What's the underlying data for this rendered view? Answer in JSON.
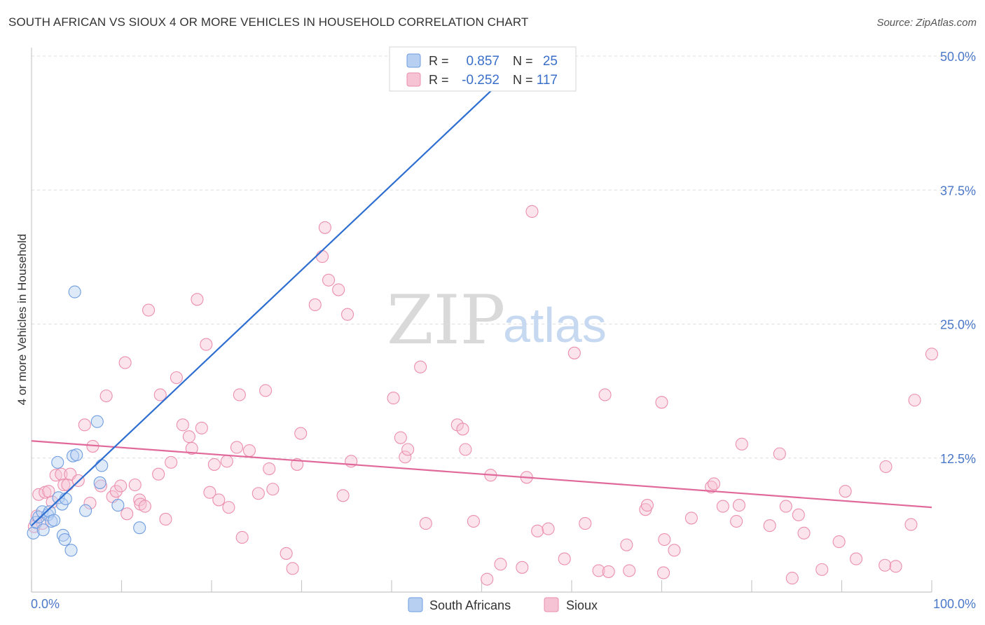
{
  "title": "SOUTH AFRICAN VS SIOUX 4 OR MORE VEHICLES IN HOUSEHOLD CORRELATION CHART",
  "source": "Source: ZipAtlas.com",
  "watermark": {
    "zip": "ZIP",
    "atlas": "atlas"
  },
  "legend_top": {
    "rows": [
      {
        "r_label": "R =",
        "r_value": "0.857",
        "n_label": "N =",
        "n_value": "25"
      },
      {
        "r_label": "R =",
        "r_value": "-0.252",
        "n_label": "N =",
        "n_value": "117"
      }
    ]
  },
  "chart_data": {
    "type": "scatter",
    "title": "SOUTH AFRICAN VS SIOUX 4 OR MORE VEHICLES IN HOUSEHOLD CORRELATION CHART",
    "xlabel": "",
    "ylabel": "4 or more Vehicles in Household",
    "xlim": [
      0,
      100
    ],
    "ylim": [
      0,
      50
    ],
    "x_tick_labels": [
      "0.0%",
      "100.0%"
    ],
    "y_ticks": [
      12.5,
      25.0,
      37.5,
      50.0
    ],
    "y_tick_labels": [
      "12.5%",
      "25.0%",
      "37.5%",
      "50.0%"
    ],
    "grid": true,
    "colors": {
      "south_africans": "#6f9de0",
      "sioux": "#eb8fae",
      "south_africans_line": "#2e6ed0",
      "sioux_line": "#e0699a"
    },
    "series": [
      {
        "name": "South Africans",
        "r": 0.857,
        "n": 25,
        "trend": {
          "x": [
            0,
            55.5
          ],
          "y": [
            6.2,
            50.3
          ]
        },
        "points": [
          {
            "x": 0.2,
            "y": 5.5
          },
          {
            "x": 0.5,
            "y": 6.5
          },
          {
            "x": 0.8,
            "y": 7.0
          },
          {
            "x": 1.2,
            "y": 7.5
          },
          {
            "x": 1.3,
            "y": 5.8
          },
          {
            "x": 1.8,
            "y": 7.2
          },
          {
            "x": 2.0,
            "y": 7.5
          },
          {
            "x": 2.2,
            "y": 6.6
          },
          {
            "x": 2.5,
            "y": 6.7
          },
          {
            "x": 3.0,
            "y": 8.8
          },
          {
            "x": 2.9,
            "y": 12.1
          },
          {
            "x": 3.4,
            "y": 8.2
          },
          {
            "x": 3.5,
            "y": 5.3
          },
          {
            "x": 3.7,
            "y": 4.9
          },
          {
            "x": 3.8,
            "y": 8.7
          },
          {
            "x": 4.4,
            "y": 3.9
          },
          {
            "x": 4.6,
            "y": 12.7
          },
          {
            "x": 4.8,
            "y": 28.0
          },
          {
            "x": 5.0,
            "y": 12.8
          },
          {
            "x": 6.0,
            "y": 7.6
          },
          {
            "x": 7.3,
            "y": 15.9
          },
          {
            "x": 7.6,
            "y": 10.2
          },
          {
            "x": 7.8,
            "y": 11.8
          },
          {
            "x": 9.6,
            "y": 8.1
          },
          {
            "x": 12.0,
            "y": 6.0
          }
        ]
      },
      {
        "name": "Sioux",
        "r": -0.252,
        "n": 117,
        "trend": {
          "x": [
            0,
            100
          ],
          "y": [
            14.1,
            7.9
          ]
        },
        "points": [
          {
            "x": 0.3,
            "y": 6.1
          },
          {
            "x": 0.6,
            "y": 7.1
          },
          {
            "x": 0.8,
            "y": 9.1
          },
          {
            "x": 1.2,
            "y": 6.4
          },
          {
            "x": 1.5,
            "y": 9.3
          },
          {
            "x": 1.9,
            "y": 9.4
          },
          {
            "x": 2.3,
            "y": 8.4
          },
          {
            "x": 2.7,
            "y": 10.9
          },
          {
            "x": 3.3,
            "y": 11.0
          },
          {
            "x": 3.6,
            "y": 10.0
          },
          {
            "x": 4.0,
            "y": 10.0
          },
          {
            "x": 4.3,
            "y": 11.0
          },
          {
            "x": 5.2,
            "y": 10.4
          },
          {
            "x": 5.9,
            "y": 15.6
          },
          {
            "x": 6.5,
            "y": 8.3
          },
          {
            "x": 6.8,
            "y": 13.6
          },
          {
            "x": 7.7,
            "y": 9.9
          },
          {
            "x": 8.3,
            "y": 18.3
          },
          {
            "x": 9.0,
            "y": 8.9
          },
          {
            "x": 9.4,
            "y": 9.4
          },
          {
            "x": 9.9,
            "y": 9.9
          },
          {
            "x": 10.6,
            "y": 7.3
          },
          {
            "x": 10.4,
            "y": 21.4
          },
          {
            "x": 11.5,
            "y": 10.0
          },
          {
            "x": 12.0,
            "y": 8.6
          },
          {
            "x": 12.1,
            "y": 8.2
          },
          {
            "x": 12.6,
            "y": 8.0
          },
          {
            "x": 13.0,
            "y": 26.3
          },
          {
            "x": 14.1,
            "y": 11.0
          },
          {
            "x": 14.3,
            "y": 18.4
          },
          {
            "x": 14.9,
            "y": 6.8
          },
          {
            "x": 15.5,
            "y": 12.1
          },
          {
            "x": 16.1,
            "y": 20.0
          },
          {
            "x": 16.8,
            "y": 15.6
          },
          {
            "x": 17.5,
            "y": 14.5
          },
          {
            "x": 17.8,
            "y": 13.4
          },
          {
            "x": 18.4,
            "y": 27.3
          },
          {
            "x": 18.9,
            "y": 15.3
          },
          {
            "x": 19.4,
            "y": 23.1
          },
          {
            "x": 19.8,
            "y": 9.3
          },
          {
            "x": 20.3,
            "y": 11.9
          },
          {
            "x": 20.8,
            "y": 8.6
          },
          {
            "x": 21.7,
            "y": 12.2
          },
          {
            "x": 21.9,
            "y": 7.9
          },
          {
            "x": 22.8,
            "y": 13.5
          },
          {
            "x": 23.1,
            "y": 18.4
          },
          {
            "x": 23.4,
            "y": 5.1
          },
          {
            "x": 24.2,
            "y": 13.2
          },
          {
            "x": 25.2,
            "y": 9.2
          },
          {
            "x": 26.0,
            "y": 18.8
          },
          {
            "x": 26.4,
            "y": 11.5
          },
          {
            "x": 26.8,
            "y": 9.6
          },
          {
            "x": 28.3,
            "y": 3.6
          },
          {
            "x": 29.0,
            "y": 2.2
          },
          {
            "x": 29.5,
            "y": 11.9
          },
          {
            "x": 29.9,
            "y": 14.8
          },
          {
            "x": 31.5,
            "y": 26.8
          },
          {
            "x": 32.3,
            "y": 31.3
          },
          {
            "x": 32.6,
            "y": 34.0
          },
          {
            "x": 33.0,
            "y": 29.1
          },
          {
            "x": 34.1,
            "y": 28.2
          },
          {
            "x": 34.6,
            "y": 9.0
          },
          {
            "x": 35.1,
            "y": 25.9
          },
          {
            "x": 35.5,
            "y": 12.2
          },
          {
            "x": 40.2,
            "y": 18.1
          },
          {
            "x": 41.0,
            "y": 14.4
          },
          {
            "x": 41.5,
            "y": 12.6
          },
          {
            "x": 41.8,
            "y": 13.3
          },
          {
            "x": 43.2,
            "y": 21.0
          },
          {
            "x": 43.8,
            "y": 6.4
          },
          {
            "x": 47.3,
            "y": 15.6
          },
          {
            "x": 47.9,
            "y": 15.2
          },
          {
            "x": 48.2,
            "y": 13.3
          },
          {
            "x": 49.1,
            "y": 6.6
          },
          {
            "x": 50.6,
            "y": 1.2
          },
          {
            "x": 51.0,
            "y": 10.9
          },
          {
            "x": 52.1,
            "y": 2.6
          },
          {
            "x": 54.5,
            "y": 2.3
          },
          {
            "x": 55.0,
            "y": 10.7
          },
          {
            "x": 55.6,
            "y": 35.5
          },
          {
            "x": 56.2,
            "y": 5.7
          },
          {
            "x": 57.4,
            "y": 5.9
          },
          {
            "x": 59.2,
            "y": 3.1
          },
          {
            "x": 60.3,
            "y": 22.3
          },
          {
            "x": 61.5,
            "y": 6.4
          },
          {
            "x": 63.0,
            "y": 2.0
          },
          {
            "x": 63.7,
            "y": 18.4
          },
          {
            "x": 64.1,
            "y": 1.9
          },
          {
            "x": 66.1,
            "y": 4.4
          },
          {
            "x": 66.4,
            "y": 2.0
          },
          {
            "x": 68.2,
            "y": 7.7
          },
          {
            "x": 68.4,
            "y": 8.1
          },
          {
            "x": 70.0,
            "y": 17.7
          },
          {
            "x": 70.2,
            "y": 1.8
          },
          {
            "x": 70.3,
            "y": 4.9
          },
          {
            "x": 71.4,
            "y": 3.9
          },
          {
            "x": 73.3,
            "y": 6.9
          },
          {
            "x": 75.5,
            "y": 9.8
          },
          {
            "x": 75.8,
            "y": 10.1
          },
          {
            "x": 76.8,
            "y": 8.0
          },
          {
            "x": 78.3,
            "y": 6.6
          },
          {
            "x": 78.6,
            "y": 8.1
          },
          {
            "x": 78.9,
            "y": 13.8
          },
          {
            "x": 82.0,
            "y": 6.2
          },
          {
            "x": 83.1,
            "y": 12.9
          },
          {
            "x": 83.8,
            "y": 8.0
          },
          {
            "x": 84.5,
            "y": 1.3
          },
          {
            "x": 85.2,
            "y": 7.2
          },
          {
            "x": 85.8,
            "y": 5.5
          },
          {
            "x": 87.8,
            "y": 2.1
          },
          {
            "x": 89.7,
            "y": 4.7
          },
          {
            "x": 90.4,
            "y": 9.4
          },
          {
            "x": 91.6,
            "y": 3.1
          },
          {
            "x": 94.8,
            "y": 2.5
          },
          {
            "x": 94.9,
            "y": 11.7
          },
          {
            "x": 96.0,
            "y": 2.4
          },
          {
            "x": 97.7,
            "y": 6.3
          },
          {
            "x": 98.1,
            "y": 17.9
          },
          {
            "x": 100.0,
            "y": 22.2
          }
        ]
      }
    ]
  }
}
